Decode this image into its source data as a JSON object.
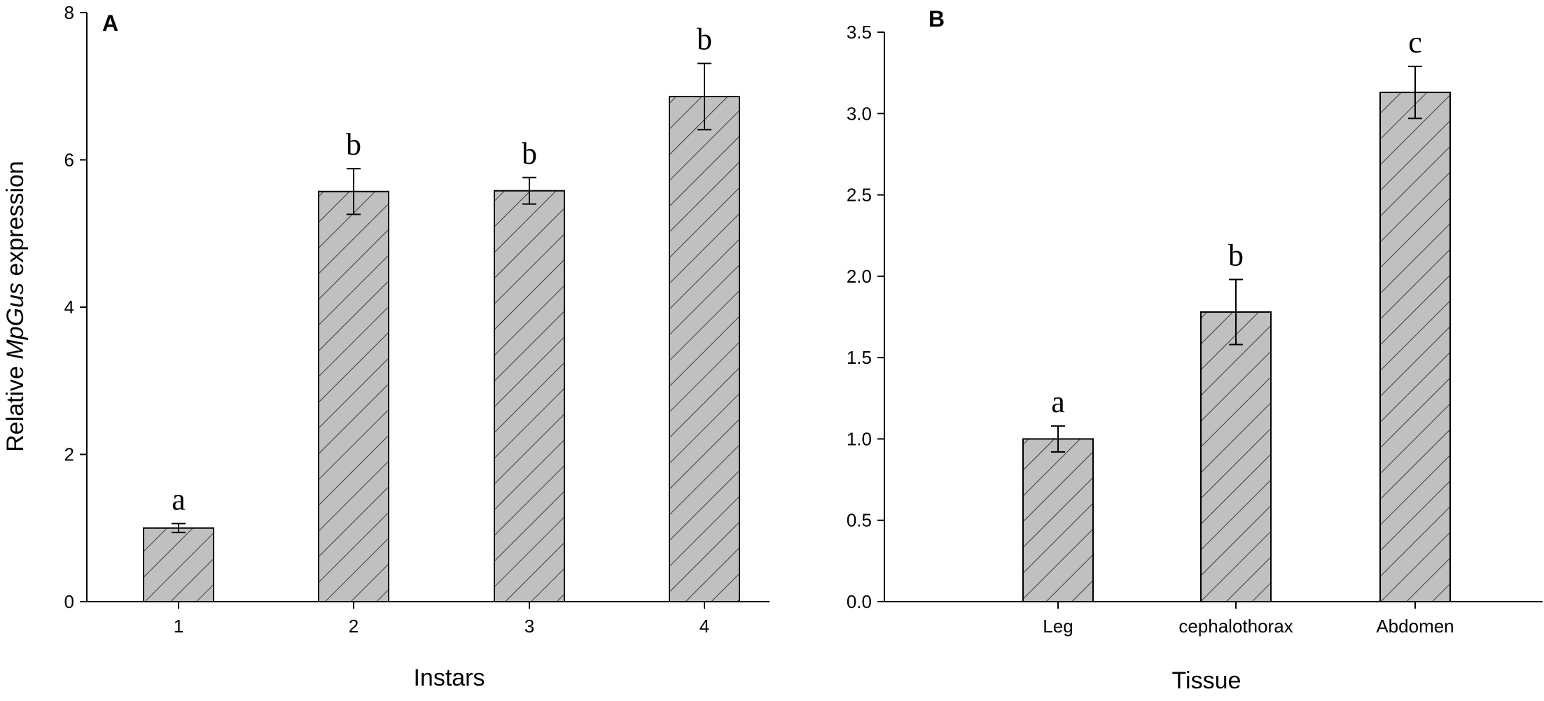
{
  "chart_data": [
    {
      "type": "bar",
      "panel_label": "A",
      "xlabel": "Instars",
      "ylabel": {
        "prefix": "Relative ",
        "gene": "MpGus",
        "suffix": " expression"
      },
      "categories": [
        "1",
        "2",
        "3",
        "4"
      ],
      "values": [
        1.0,
        5.57,
        5.58,
        6.86
      ],
      "errors": [
        0.06,
        0.31,
        0.18,
        0.45
      ],
      "significance": [
        "a",
        "b",
        "b",
        "b"
      ],
      "ylim": [
        0,
        8
      ],
      "yticks": [
        "0",
        "2",
        "4",
        "6",
        "8"
      ],
      "bar_fill": "#c0c0c0",
      "hatch": "diagonal",
      "grid": false
    },
    {
      "type": "bar",
      "panel_label": "B",
      "xlabel": "Tissue",
      "ylabel": "",
      "categories": [
        "Leg",
        "cephalothorax",
        "Abdomen"
      ],
      "values": [
        1.0,
        1.78,
        3.13
      ],
      "errors": [
        0.08,
        0.2,
        0.16
      ],
      "significance": [
        "a",
        "b",
        "c"
      ],
      "ylim": [
        0,
        3.5
      ],
      "yticks": [
        "0.0",
        "0.5",
        "1.0",
        "1.5",
        "2.0",
        "2.5",
        "3.0",
        "3.5"
      ],
      "bar_fill": "#c0c0c0",
      "hatch": "diagonal",
      "grid": false
    }
  ]
}
